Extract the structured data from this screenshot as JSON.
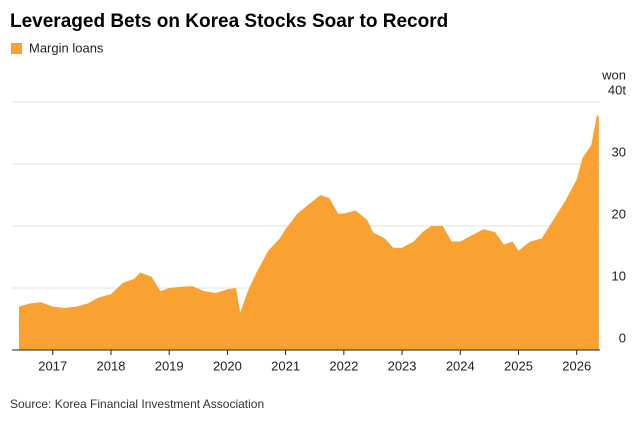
{
  "chart_data": {
    "type": "area",
    "title": "Leveraged Bets on Korea Stocks Soar to Record",
    "y_unit": "won",
    "source": "Source: Korea Financial Investment Association",
    "x": [
      2016.42,
      2016.6,
      2016.8,
      2017.0,
      2017.2,
      2017.4,
      2017.6,
      2017.8,
      2018.0,
      2018.2,
      2018.4,
      2018.5,
      2018.7,
      2018.85,
      2019.0,
      2019.2,
      2019.4,
      2019.6,
      2019.8,
      2020.0,
      2020.15,
      2020.22,
      2020.35,
      2020.5,
      2020.7,
      2020.9,
      2021.0,
      2021.2,
      2021.4,
      2021.6,
      2021.75,
      2021.9,
      2022.0,
      2022.2,
      2022.4,
      2022.5,
      2022.7,
      2022.85,
      2023.0,
      2023.2,
      2023.35,
      2023.5,
      2023.7,
      2023.85,
      2024.0,
      2024.2,
      2024.4,
      2024.6,
      2024.75,
      2024.9,
      2025.0,
      2025.2,
      2025.4,
      2025.6,
      2025.8,
      2026.0,
      2026.1,
      2026.25,
      2026.35,
      2026.38
    ],
    "series": [
      {
        "name": "Margin loans",
        "color": "#f9a131",
        "values": [
          7.0,
          7.5,
          7.7,
          7.0,
          6.8,
          7.0,
          7.5,
          8.5,
          9.0,
          10.8,
          11.5,
          12.5,
          11.8,
          9.5,
          10.0,
          10.2,
          10.3,
          9.5,
          9.2,
          9.8,
          10.0,
          6.0,
          9.5,
          12.5,
          16.0,
          18.0,
          19.5,
          22.0,
          23.5,
          25.0,
          24.5,
          22.0,
          22.0,
          22.5,
          21.0,
          19.0,
          18.0,
          16.5,
          16.5,
          17.5,
          19.0,
          20.0,
          20.0,
          17.5,
          17.5,
          18.5,
          19.5,
          19.0,
          17.0,
          17.5,
          16.0,
          17.5,
          18.0,
          21.0,
          24.0,
          27.5,
          31.0,
          33.0,
          38.0,
          37.5
        ]
      }
    ],
    "xlim": [
      2016.3,
      2026.4
    ],
    "xticks": [
      2017,
      2018,
      2019,
      2020,
      2021,
      2022,
      2023,
      2024,
      2025,
      2026
    ],
    "ylim": [
      0,
      40
    ],
    "yticks": [
      0,
      10,
      20,
      30,
      {
        "value": 40,
        "label": "40t"
      }
    ],
    "grid": true
  }
}
